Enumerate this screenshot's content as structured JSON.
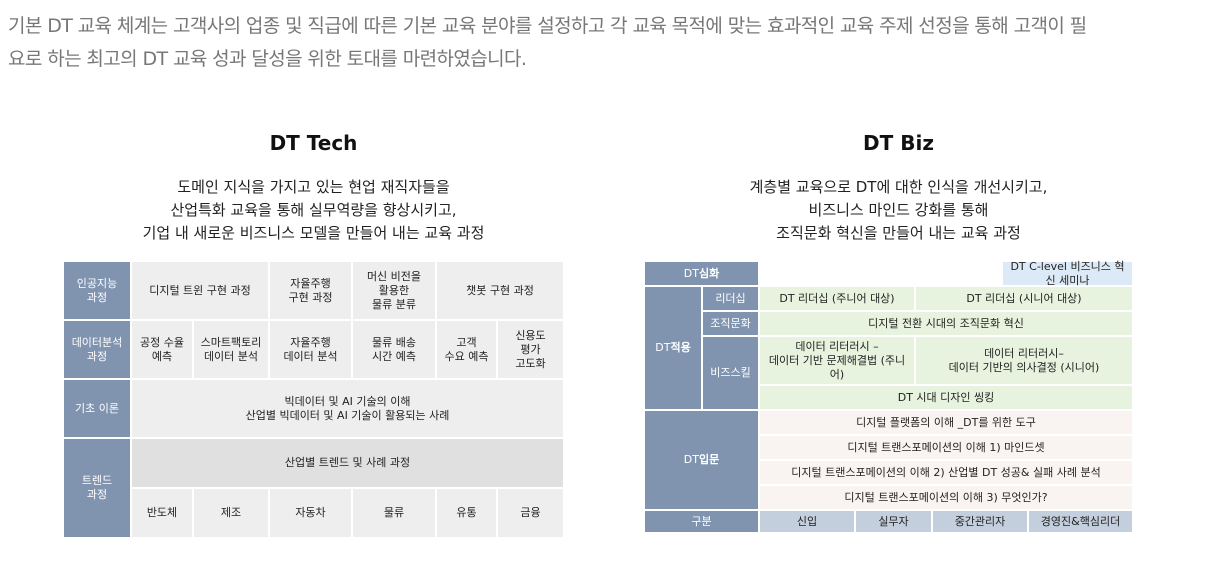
{
  "intro": {
    "line1": "기본 DT 교육 체계는 고객사의 업종 및 직급에 따른 기본 교육 분야를 설정하고 각 교육 목적에 맞는 효과적인 교육 주제 선정을 통해 고객이 필",
    "line2": "요로 하는 최고의 DT 교육 성과 달성을 위한 토대를 마련하였습니다."
  },
  "tech": {
    "title": "DT Tech",
    "desc": [
      "도메인 지식을 가지고 있는 현업 재직자들을",
      "산업특화 교육을 통해 실무역량을 향상시키고,",
      "기업 내 새로운 비즈니스 모델을 만들어 내는 교육 과정"
    ],
    "rows": {
      "ai_label": "인공지능\n과정",
      "ai": [
        "디지털 트윈 구현 과정",
        "자율주행\n구현 과정",
        "머신 비전을\n활용한\n물류 분류",
        "챗봇 구현 과정"
      ],
      "data_label": "데이터분석\n과정",
      "data": [
        "공정 수율\n예측",
        "스마트팩토리\n데이터 분석",
        "자율주행\n데이터 분석",
        "물류 배송\n시간 예측",
        "고객\n수요 예측",
        "신용도\n평가\n고도화"
      ],
      "basic_label": "기초 이론",
      "basic": "빅데이터 및 AI 기술의 이해\n산업별 빅데이터 및 AI 기술이 활용되는 사례",
      "trend_label": "트렌드\n과정",
      "trend": "산업별 트렌드 및 사례 과정",
      "industries": [
        "반도체",
        "제조",
        "자동차",
        "물류",
        "유통",
        "금융"
      ]
    }
  },
  "biz": {
    "title": "DT Biz",
    "desc": [
      "계층별 교육으로 DT에 대한 인식을 개선시키고,",
      "비즈니스 마인드 강화를 통해",
      "조직문화 혁신을 만들어 내는 교육 과정"
    ],
    "deep_label_a": "DT ",
    "deep_label_b": "심화",
    "deep_topic": "DT C-level 비즈니스 혁신 세미나",
    "apply_label_a": "DT ",
    "apply_label_b": "적용",
    "leadership": "리더십",
    "leadership_junior": "DT 리더십 (주니어 대상)",
    "leadership_senior": "DT 리더십 (시니어 대상)",
    "culture": "조직문화",
    "culture_topic": "디지털 전환 시대의 조직문화 혁신",
    "skill": "비즈스킬",
    "literacy_junior": "데이터 리터러시 –\n데이터 기반 문제해결법 (주니어)",
    "literacy_senior": "데이터 리터러시–\n데이터 기반의 의사결정 (시니어)",
    "design_thinking": "DT 시대 디자인 씽킹",
    "intro_label_a": "DT ",
    "intro_label_b": "입문",
    "intro_topics": [
      "디지털 플랫폼의 이해 _DT를 위한 도구",
      "디지털 트랜스포메이션의 이해 1) 마인드셋",
      "디지털 트랜스포메이션의 이해 2) 산업별 DT 성공& 실패 사례 분석",
      "디지털 트랜스포메이션의 이해 3) 무엇인가?"
    ],
    "footer": [
      "구분",
      "신입",
      "실무자",
      "중간관리자",
      "경영진&핵심리더"
    ]
  },
  "colors": {
    "header": "#8094b0",
    "cell": "#eeeeee",
    "green": "#e7f3de",
    "pink": "#f9f4f1",
    "blue": "#dce9f6"
  }
}
